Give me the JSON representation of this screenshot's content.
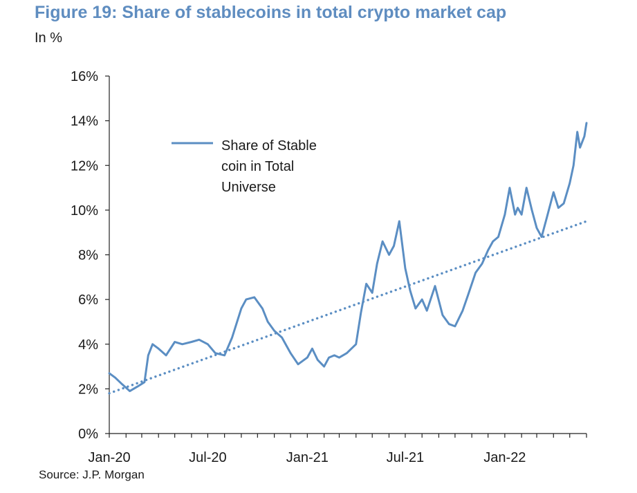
{
  "chart_data": {
    "type": "line",
    "title": "Figure 19: Share of stablecoins in total crypto market cap",
    "subtitle": "In %",
    "source": "Source: J.P. Morgan",
    "ylim": [
      0,
      16
    ],
    "y_ticks": [
      "0%",
      "2%",
      "4%",
      "6%",
      "8%",
      "10%",
      "12%",
      "14%",
      "16%"
    ],
    "x_ticks": [
      "Jan-20",
      "Jul-20",
      "Jan-21",
      "Jul-21",
      "Jan-22"
    ],
    "legend": {
      "placement": "top-left",
      "lines": [
        "Share of Stable",
        "coin in Total",
        "Universe"
      ]
    },
    "series": [
      {
        "name": "Share of Stable coin in Total Universe",
        "color": "#5b8ec3",
        "x": [
          "2020-01-01",
          "2020-01-12",
          "2020-01-25",
          "2020-02-08",
          "2020-02-22",
          "2020-03-06",
          "2020-03-13",
          "2020-03-21",
          "2020-04-01",
          "2020-04-15",
          "2020-05-01",
          "2020-05-15",
          "2020-06-01",
          "2020-06-15",
          "2020-07-01",
          "2020-07-15",
          "2020-08-01",
          "2020-08-15",
          "2020-09-01",
          "2020-09-10",
          "2020-09-25",
          "2020-10-10",
          "2020-10-20",
          "2020-11-01",
          "2020-11-15",
          "2020-12-01",
          "2020-12-15",
          "2021-01-01",
          "2021-01-10",
          "2021-01-20",
          "2021-02-01",
          "2021-02-10",
          "2021-02-20",
          "2021-03-01",
          "2021-03-15",
          "2021-04-01",
          "2021-04-10",
          "2021-04-20",
          "2021-05-01",
          "2021-05-10",
          "2021-05-20",
          "2021-06-01",
          "2021-06-10",
          "2021-06-20",
          "2021-07-01",
          "2021-07-10",
          "2021-07-20",
          "2021-08-01",
          "2021-08-10",
          "2021-08-25",
          "2021-09-08",
          "2021-09-20",
          "2021-10-01",
          "2021-10-15",
          "2021-10-25",
          "2021-11-08",
          "2021-11-20",
          "2021-12-01",
          "2021-12-10",
          "2021-12-20",
          "2022-01-01",
          "2022-01-10",
          "2022-01-20",
          "2022-01-25",
          "2022-02-01",
          "2022-02-10",
          "2022-02-20",
          "2022-03-01",
          "2022-03-10",
          "2022-03-20",
          "2022-04-01",
          "2022-04-10",
          "2022-04-20",
          "2022-05-01",
          "2022-05-08",
          "2022-05-15",
          "2022-05-20",
          "2022-05-28",
          "2022-06-01"
        ],
        "values": [
          2.7,
          2.5,
          2.2,
          1.9,
          2.1,
          2.3,
          3.5,
          4.0,
          3.8,
          3.5,
          4.1,
          4.0,
          4.1,
          4.2,
          4.0,
          3.6,
          3.5,
          4.3,
          5.6,
          6.0,
          6.1,
          5.6,
          5.0,
          4.6,
          4.3,
          3.6,
          3.1,
          3.4,
          3.8,
          3.3,
          3.0,
          3.4,
          3.5,
          3.4,
          3.6,
          4.0,
          5.4,
          6.7,
          6.3,
          7.6,
          8.6,
          8.0,
          8.4,
          9.5,
          7.4,
          6.4,
          5.6,
          6.0,
          5.5,
          6.6,
          5.3,
          4.9,
          4.8,
          5.5,
          6.2,
          7.2,
          7.6,
          8.2,
          8.6,
          8.8,
          9.8,
          11.0,
          9.8,
          10.1,
          9.8,
          11.0,
          10.0,
          9.2,
          8.8,
          9.7,
          10.8,
          10.1,
          10.3,
          11.2,
          12.0,
          13.5,
          12.8,
          13.3,
          13.9
        ]
      },
      {
        "name": "Trend",
        "color": "#5b8ec3",
        "style": "dotted",
        "x": [
          "2020-01-01",
          "2022-06-01"
        ],
        "values": [
          1.8,
          9.5
        ]
      }
    ]
  }
}
